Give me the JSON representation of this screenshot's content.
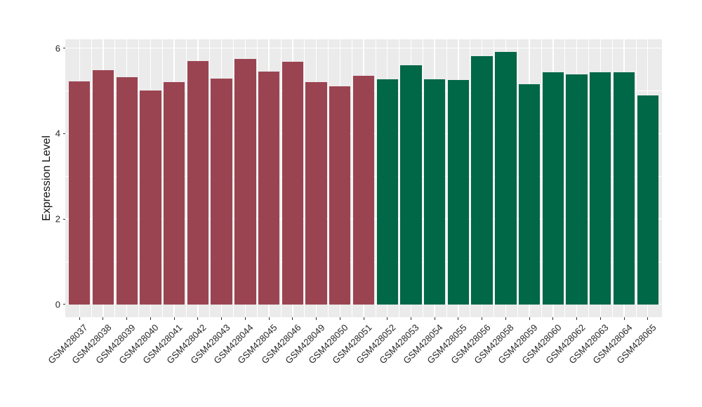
{
  "figure": {
    "background": "#FFFFFF",
    "panel_background": "#EBEBEB",
    "grid_color": "#FFFFFF",
    "axis_text_color": "#262626",
    "tick_mark_color": "#333333"
  },
  "chart_data": {
    "type": "bar",
    "title": "",
    "xlabel": "",
    "ylabel": "Expression Level",
    "ylim": [
      0,
      6
    ],
    "yticks": [
      0,
      2,
      4,
      6
    ],
    "yticks_minor": [
      1,
      3,
      5
    ],
    "grid": true,
    "legend_position": "none",
    "bar_color_maroon": "#9B4451",
    "bar_color_green": "#006747",
    "categories": [
      "GSM428037",
      "GSM428038",
      "GSM428039",
      "GSM428040",
      "GSM428041",
      "GSM428042",
      "GSM428043",
      "GSM428044",
      "GSM428045",
      "GSM428046",
      "GSM428049",
      "GSM428050",
      "GSM428051",
      "GSM428052",
      "GSM428053",
      "GSM428054",
      "GSM428055",
      "GSM428056",
      "GSM428058",
      "GSM428059",
      "GSM428060",
      "GSM428062",
      "GSM428063",
      "GSM428064",
      "GSM428065"
    ],
    "values": [
      5.23,
      5.48,
      5.33,
      5.01,
      5.21,
      5.7,
      5.29,
      5.75,
      5.46,
      5.69,
      5.21,
      5.11,
      5.36,
      5.27,
      5.6,
      5.27,
      5.25,
      5.82,
      5.91,
      5.16,
      5.43,
      5.38,
      5.44,
      5.43,
      4.9
    ],
    "bar_colors": [
      "#9B4451",
      "#9B4451",
      "#9B4451",
      "#9B4451",
      "#9B4451",
      "#9B4451",
      "#9B4451",
      "#9B4451",
      "#9B4451",
      "#9B4451",
      "#9B4451",
      "#9B4451",
      "#9B4451",
      "#006747",
      "#006747",
      "#006747",
      "#006747",
      "#006747",
      "#006747",
      "#006747",
      "#006747",
      "#006747",
      "#006747",
      "#006747",
      "#006747"
    ]
  }
}
